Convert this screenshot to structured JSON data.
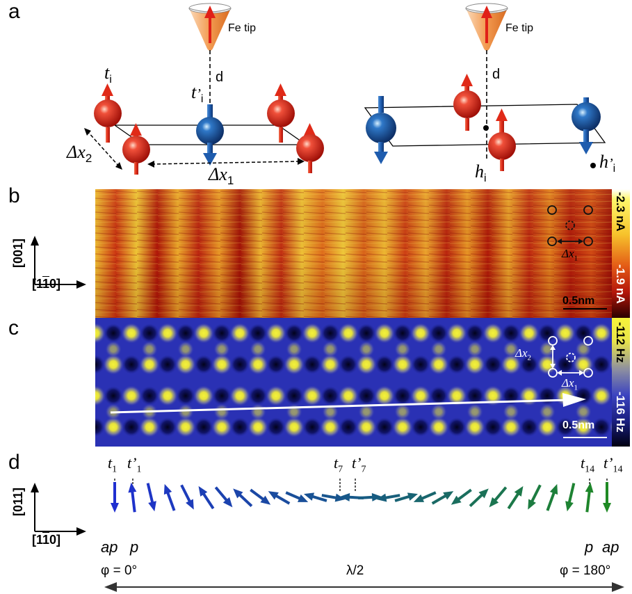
{
  "panels": {
    "a": "a",
    "b": "b",
    "c": "c",
    "d": "d"
  },
  "panel_a": {
    "tip_label_left": "Fe tip",
    "tip_label_right": "Fe tip",
    "d_left": "d",
    "d_right": "d",
    "t_i": "t",
    "t_i_sub": "i",
    "t_i_prime": "t",
    "t_i_prime_sub": "i",
    "t_i_prime_mark": "’",
    "dx2": "Δx",
    "dx2_sub": "2",
    "dx1": "Δx",
    "dx1_sub": "1",
    "h_i": "h",
    "h_i_sub": "i",
    "h_i_prime": "h",
    "h_i_prime_sub": "i",
    "h_i_prime_mark": "’"
  },
  "panel_b": {
    "axis_vertical": "[001]",
    "axis_horizontal": "[1¯10]",
    "axis_horizontal_main": "[1",
    "axis_horizontal_bar": "1",
    "axis_horizontal_end": "0]",
    "colorbar_top": "-2.3 nA",
    "colorbar_bottom": "-1.9 nA",
    "scale_bar": "0.5nm",
    "dx1": "Δx",
    "dx1_sub": "1"
  },
  "panel_c": {
    "colorbar_top": "-112 Hz",
    "colorbar_bottom": "-116 Hz",
    "scale_bar": "0.5nm",
    "dx1": "Δx",
    "dx1_sub": "1",
    "dx2": "Δx",
    "dx2_sub": "2"
  },
  "panel_d": {
    "axis_vertical": "[011]",
    "axis_horizontal_main": "[1",
    "axis_horizontal_bar": "1",
    "axis_horizontal_end": "0]",
    "sites": [
      {
        "name": "t",
        "sub": "1",
        "prime": false
      },
      {
        "name": "t",
        "sub": "1",
        "prime": true
      },
      {
        "name": "t",
        "sub": "7",
        "prime": false
      },
      {
        "name": "t",
        "sub": "7",
        "prime": true
      },
      {
        "name": "t",
        "sub": "14",
        "prime": false
      },
      {
        "name": "t",
        "sub": "14",
        "prime": true
      }
    ],
    "prime_mark": "’",
    "label_ap_left": "ap",
    "label_p_left": "p",
    "label_p_right": "p",
    "label_ap_right": "ap",
    "phi_start": "φ = 0°",
    "phi_end": "φ = 180°",
    "half_wavelength": "λ/2",
    "colors": {
      "blue": "#1f2fd0",
      "teal": "#175a86",
      "green": "#1f8a24"
    }
  },
  "colors": {
    "red_atom": "#d8281c",
    "blue_atom": "#1b4f9c",
    "tip_orange": "#f0964a"
  }
}
